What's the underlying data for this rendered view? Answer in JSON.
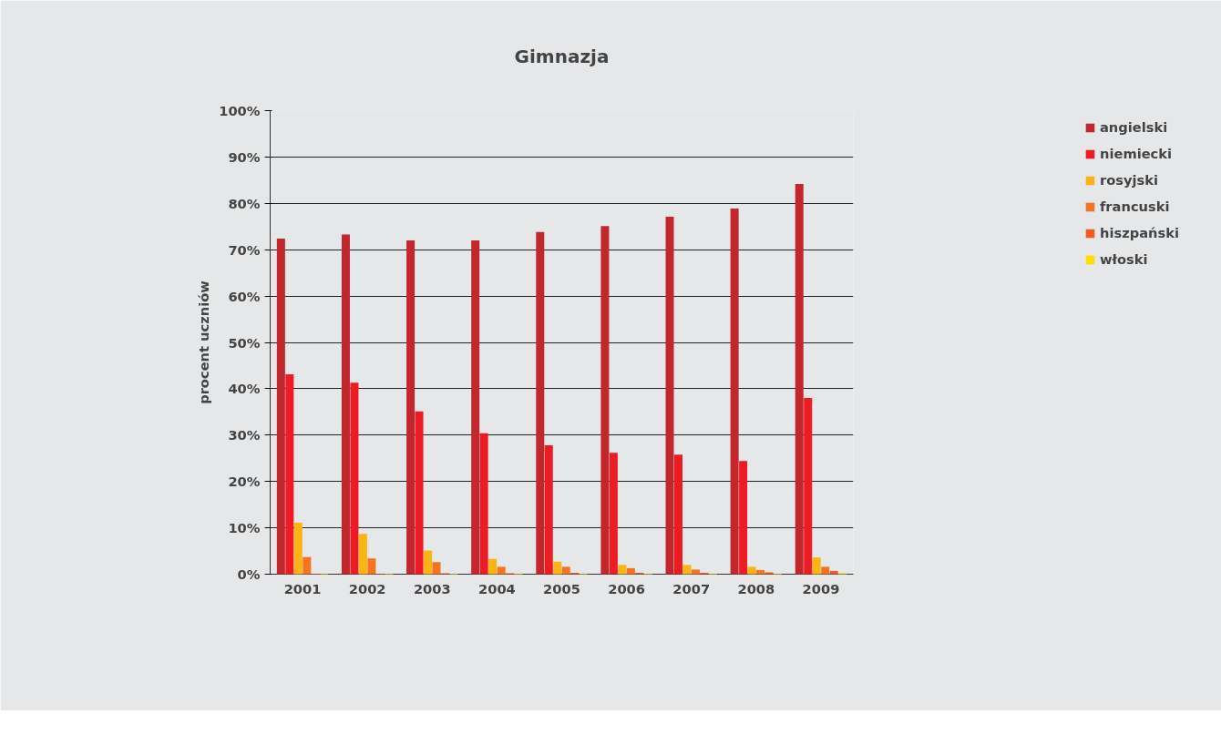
{
  "chart_data": {
    "type": "bar",
    "title": "Gimnazja",
    "ylabel": "procent uczniów",
    "categories": [
      "2001",
      "2002",
      "2003",
      "2004",
      "2005",
      "2006",
      "2007",
      "2008",
      "2009"
    ],
    "series": [
      {
        "name": "angielski",
        "color": "#c1272d",
        "values": [
          72.4,
          73.3,
          72,
          72,
          73.8,
          75.1,
          77.1,
          78.9,
          84.2
        ]
      },
      {
        "name": "niemiecki",
        "color": "#ed1c24",
        "values": [
          43.1,
          41.3,
          35.1,
          30.4,
          27.8,
          26.2,
          25.8,
          24.4,
          38
        ]
      },
      {
        "name": "rosyjski",
        "color": "#fbb415",
        "values": [
          11.1,
          8.7,
          5.1,
          3.3,
          2.7,
          2,
          2,
          1.6,
          3.6
        ]
      },
      {
        "name": "francuski",
        "color": "#f47421",
        "values": [
          3.7,
          3.4,
          2.6,
          1.6,
          1.6,
          1.3,
          1,
          0.9,
          1.6
        ]
      },
      {
        "name": "hiszpański",
        "color": "#f15a24",
        "values": [
          0.1,
          0.1,
          0.2,
          0.2,
          0.3,
          0.3,
          0.3,
          0.4,
          0.7
        ]
      },
      {
        "name": "włoski",
        "color": "#ffde00",
        "values": [
          0.1,
          0.1,
          0.1,
          0.1,
          0.1,
          0.1,
          0.1,
          0.1,
          0.2
        ]
      }
    ],
    "ylim": [
      0,
      100
    ],
    "yticks": [
      {
        "value": 0,
        "label": "0%"
      },
      {
        "value": 10,
        "label": "10%"
      },
      {
        "value": 20,
        "label": "20%"
      },
      {
        "value": 30,
        "label": "30%"
      },
      {
        "value": 40,
        "label": "40%"
      },
      {
        "value": 50,
        "label": "50%"
      },
      {
        "value": 60,
        "label": "60%"
      },
      {
        "value": 70,
        "label": "70%"
      },
      {
        "value": 80,
        "label": "80%"
      },
      {
        "value": 90,
        "label": "90%"
      },
      {
        "value": 100,
        "label": "100%"
      }
    ],
    "grid": "y",
    "legend": "top right"
  }
}
